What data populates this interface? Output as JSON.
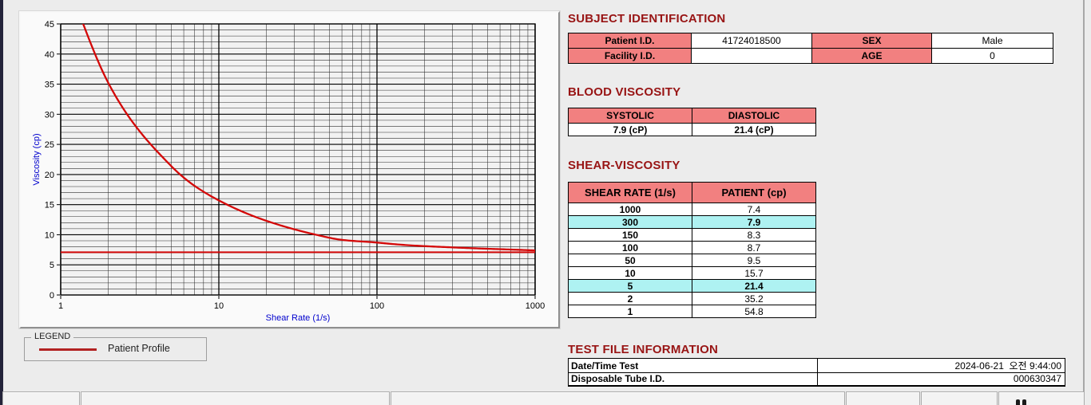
{
  "window": {
    "background": "#ececec"
  },
  "colors": {
    "section_title": "#981414",
    "table_header_bg": "#f28080",
    "highlight_bg": "#aef2f2",
    "curve": "#d40808",
    "axis_title": "#0000cd",
    "legend_line": "#b22222"
  },
  "chart_data": {
    "type": "line",
    "x_scale": "log",
    "xlabel": "Shear Rate (1/s)",
    "ylabel": "Viscosity (cp)",
    "xlim": [
      1,
      1000
    ],
    "ylim": [
      0,
      45
    ],
    "x_ticks": [
      1,
      10,
      100,
      1000
    ],
    "y_major_step": 5,
    "y_minor_step": 1,
    "grid": true,
    "legend_position": "below-chart-box",
    "series": [
      {
        "name": "Patient Profile",
        "color": "#d40808",
        "x": [
          1,
          2,
          5,
          10,
          50,
          100,
          150,
          300,
          1000
        ],
        "y": [
          54.8,
          35.2,
          21.4,
          15.7,
          9.5,
          8.7,
          8.3,
          7.9,
          7.4
        ]
      }
    ],
    "baseline": {
      "y": 7.1,
      "color": "#d40808"
    }
  },
  "legend": {
    "box_title": "LEGEND",
    "entries": [
      {
        "label": "Patient Profile",
        "color": "#b22222"
      }
    ]
  },
  "subject": {
    "title": "SUBJECT IDENTIFICATION",
    "rows": [
      {
        "l1": "Patient I.D.",
        "v1": "41724018500",
        "l2": "SEX",
        "v2": "Male"
      },
      {
        "l1": "Facility I.D.",
        "v1": "",
        "l2": "AGE",
        "v2": "0"
      }
    ]
  },
  "blood": {
    "title": "BLOOD VISCOSITY",
    "headers": [
      "SYSTOLIC",
      "DIASTOLIC"
    ],
    "values": [
      "7.9 (cP)",
      "21.4 (cP)"
    ]
  },
  "shear": {
    "title": "SHEAR-VISCOSITY",
    "headers": [
      "SHEAR RATE (1/s)",
      "PATIENT (cp)"
    ],
    "rows": [
      {
        "rate": "1000",
        "value": "7.4",
        "highlight": false
      },
      {
        "rate": "300",
        "value": "7.9",
        "highlight": true
      },
      {
        "rate": "150",
        "value": "8.3",
        "highlight": false
      },
      {
        "rate": "100",
        "value": "8.7",
        "highlight": false
      },
      {
        "rate": "50",
        "value": "9.5",
        "highlight": false
      },
      {
        "rate": "10",
        "value": "15.7",
        "highlight": false
      },
      {
        "rate": "5",
        "value": "21.4",
        "highlight": true
      },
      {
        "rate": "2",
        "value": "35.2",
        "highlight": false
      },
      {
        "rate": "1",
        "value": "54.8",
        "highlight": false
      }
    ]
  },
  "testfile": {
    "title": "TEST FILE INFORMATION",
    "rows": [
      {
        "label": "Date/Time Test",
        "value": "2024-06-21  오전 9:44:00"
      },
      {
        "label": "Disposable Tube I.D.",
        "value": "000630347"
      }
    ]
  }
}
